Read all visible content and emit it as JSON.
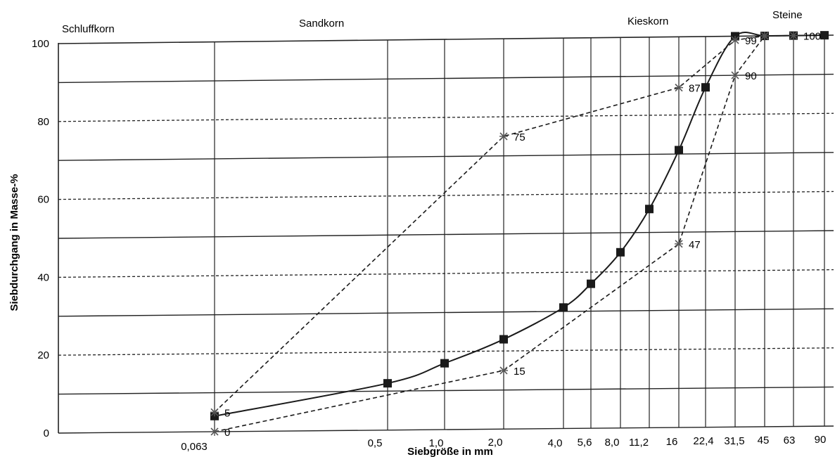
{
  "chart_data": {
    "type": "line",
    "xlabel": "Siebgröße in mm",
    "ylabel": "Siebdurchgang in Masse-%",
    "ylim": [
      0,
      100
    ],
    "y_ticks": [
      "0",
      "20",
      "40",
      "60",
      "80",
      "100"
    ],
    "x_scale": "categorical sieve sizes",
    "x_tick_labels": [
      "0,063",
      "0,5",
      "1,0",
      "2,0",
      "4,0",
      "5,6",
      "8,0",
      "11,2",
      "16",
      "22,4",
      "31,5",
      "45",
      "63",
      "90"
    ],
    "regions": [
      "Schluffkorn",
      "Sandkorn",
      "Kieskorn",
      "Steine"
    ],
    "grid": true,
    "series": [
      {
        "style": "solid line, filled square markers",
        "color": "#1a1a1a",
        "points": [
          {
            "x": 0.063,
            "y": 4
          },
          {
            "x": 0.5,
            "y": 12
          },
          {
            "x": 1.0,
            "y": 17
          },
          {
            "x": 2.0,
            "y": 23
          },
          {
            "x": 4.0,
            "y": 31
          },
          {
            "x": 5.6,
            "y": 37
          },
          {
            "x": 8.0,
            "y": 45
          },
          {
            "x": 11.2,
            "y": 56
          },
          {
            "x": 16,
            "y": 71
          },
          {
            "x": 22.4,
            "y": 87
          },
          {
            "x": 31.5,
            "y": 100
          },
          {
            "x": 45,
            "y": 100
          },
          {
            "x": 63,
            "y": 100
          },
          {
            "x": 90,
            "y": 100
          }
        ]
      },
      {
        "style": "dashed line, star markers",
        "color": "#1a1a1a",
        "points": [
          {
            "x": 0.063,
            "y": 5,
            "label": "5"
          },
          {
            "x": 2.0,
            "y": 75,
            "label": "75"
          },
          {
            "x": 16,
            "y": 87,
            "label": "87"
          },
          {
            "x": 31.5,
            "y": 99,
            "label": "99"
          },
          {
            "x": 45,
            "y": 100
          },
          {
            "x": 63,
            "y": 100,
            "label": "100"
          }
        ]
      },
      {
        "style": "dashed line, star markers",
        "color": "#1a1a1a",
        "points": [
          {
            "x": 0.063,
            "y": 0,
            "label": "0"
          },
          {
            "x": 2.0,
            "y": 15,
            "label": "15"
          },
          {
            "x": 16,
            "y": 47,
            "label": "47"
          },
          {
            "x": 31.5,
            "y": 90,
            "label": "90"
          },
          {
            "x": 45,
            "y": 100
          }
        ]
      }
    ]
  }
}
